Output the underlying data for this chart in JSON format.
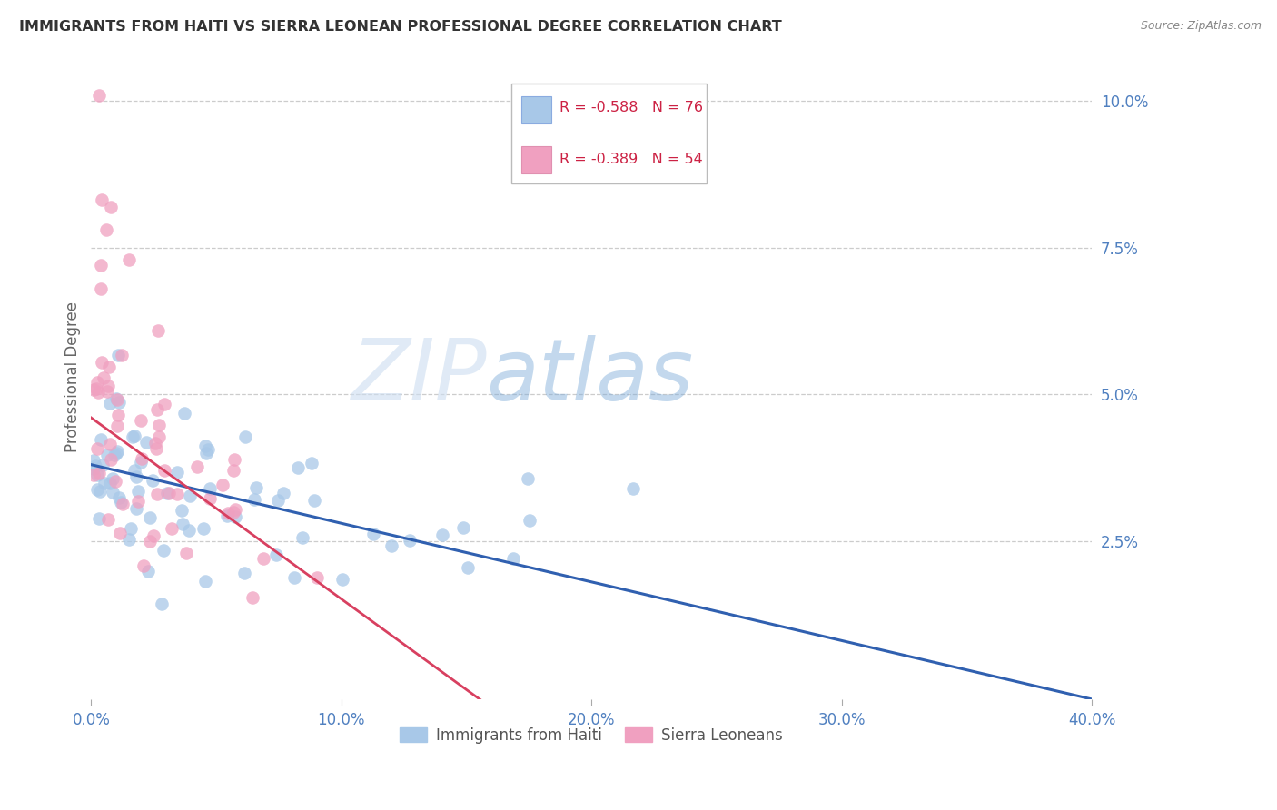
{
  "title": "IMMIGRANTS FROM HAITI VS SIERRA LEONEAN PROFESSIONAL DEGREE CORRELATION CHART",
  "source": "Source: ZipAtlas.com",
  "ylabel": "Professional Degree",
  "right_ytick_labels": [
    "10.0%",
    "7.5%",
    "5.0%",
    "2.5%"
  ],
  "right_ytick_values": [
    0.1,
    0.075,
    0.05,
    0.025
  ],
  "xlim": [
    0.0,
    0.4
  ],
  "ylim": [
    -0.002,
    0.108
  ],
  "xtick_labels": [
    "0.0%",
    "10.0%",
    "20.0%",
    "30.0%",
    "40.0%"
  ],
  "xtick_values": [
    0.0,
    0.1,
    0.2,
    0.3,
    0.4
  ],
  "haiti_color": "#a8c8e8",
  "sierra_color": "#f0a0c0",
  "haiti_trend_color": "#3060b0",
  "sierra_trend_color": "#d84060",
  "legend_blue_R": "R = -0.588",
  "legend_blue_N": "N = 76",
  "legend_pink_R": "R = -0.389",
  "legend_pink_N": "N = 54",
  "haiti_label": "Immigrants from Haiti",
  "sierra_label": "Sierra Leoneans",
  "title_color": "#333333",
  "axis_label_color": "#5080c0",
  "tick_color": "#5080c0",
  "background_color": "#ffffff",
  "grid_color": "#cccccc",
  "haiti_trend_start_y": 0.038,
  "haiti_trend_end_y": -0.002,
  "haiti_trend_start_x": 0.0,
  "haiti_trend_end_x": 0.4,
  "sierra_trend_start_y": 0.046,
  "sierra_trend_end_y": -0.005,
  "sierra_trend_start_x": 0.0,
  "sierra_trend_end_x": 0.165
}
